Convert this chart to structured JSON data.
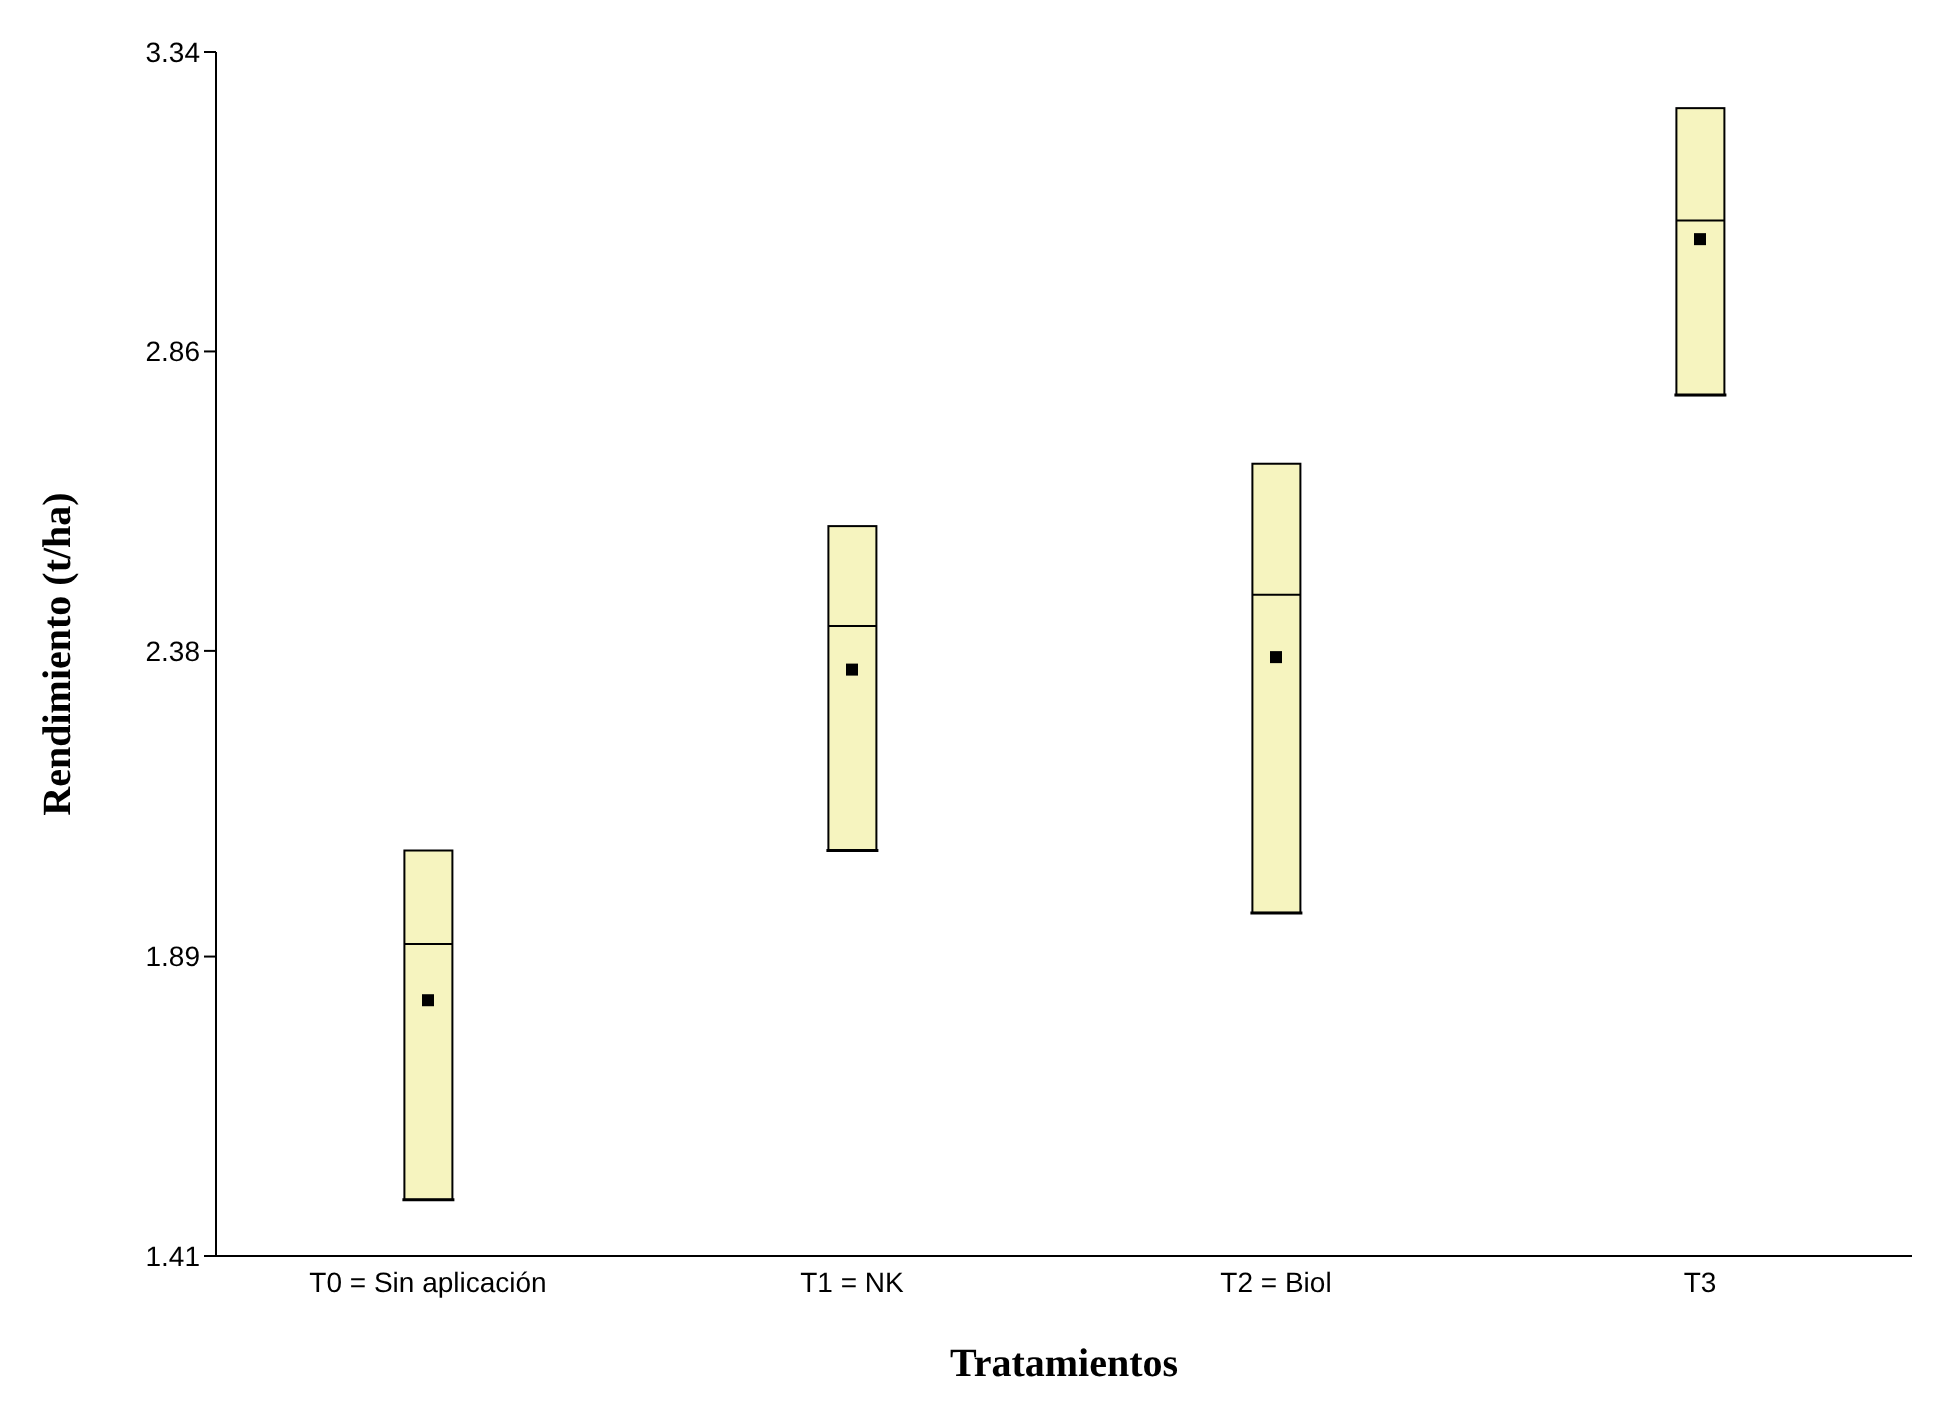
{
  "chart_data": {
    "type": "box",
    "xlabel": "Tratamientos",
    "ylabel": "Rendimiento (t/ha)",
    "categories": [
      "T0 = Sin aplicación",
      "T1 = NK",
      "T2 = Biol",
      "T3"
    ],
    "boxes": [
      {
        "low": 1.5,
        "q1": 1.5,
        "median": 1.91,
        "q3": 2.06,
        "high": 2.06,
        "mean": 1.82
      },
      {
        "low": 2.06,
        "q1": 2.06,
        "median": 2.42,
        "q3": 2.58,
        "high": 2.58,
        "mean": 2.35
      },
      {
        "low": 1.96,
        "q1": 1.96,
        "median": 2.47,
        "q3": 2.68,
        "high": 2.68,
        "mean": 2.37
      },
      {
        "low": 2.79,
        "q1": 2.79,
        "median": 3.07,
        "q3": 3.25,
        "high": 3.25,
        "mean": 3.04
      }
    ],
    "color": "#f6f4bf",
    "ylim": [
      1.41,
      3.34
    ],
    "yticks": [
      1.41,
      1.89,
      2.38,
      2.86,
      3.34
    ],
    "grid": false
  }
}
